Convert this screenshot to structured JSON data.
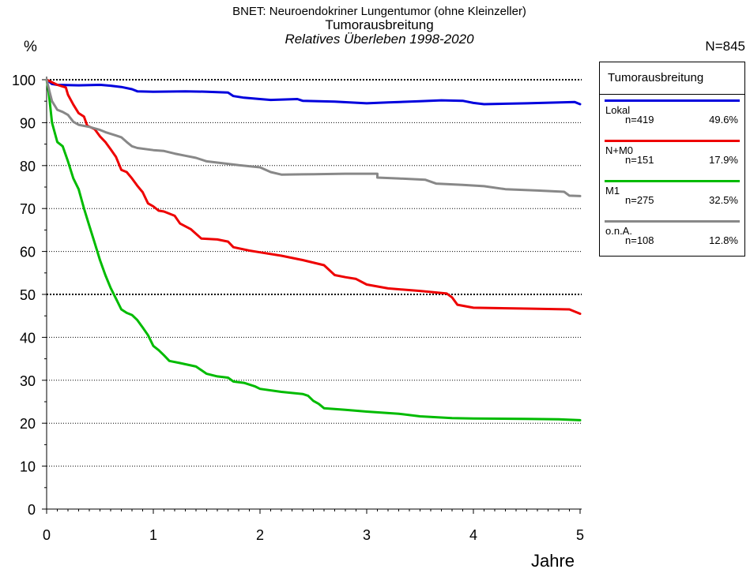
{
  "chart_data": {
    "type": "line",
    "title": "BNET: Neuroendokriner Lungentumor (ohne Kleinzeller)",
    "subtitle": "Tumorausbreitung",
    "period": "Relatives Überleben 1998-2020",
    "ylabel": "%",
    "xlabel": "Jahre",
    "n_total": "N=845",
    "xlim": [
      0,
      5
    ],
    "ylim": [
      0,
      100
    ],
    "xticks": [
      "0",
      "1",
      "2",
      "3",
      "4",
      "5"
    ],
    "yticks": [
      "0",
      "10",
      "20",
      "30",
      "40",
      "50",
      "60",
      "70",
      "80",
      "90",
      "100"
    ],
    "grid": "horizontal dotted",
    "bold_gridlines": [
      50,
      100
    ],
    "legend_title": "Tumorausbreitung",
    "legend_position": "right",
    "series": [
      {
        "name": "Lokal",
        "n": "n=419",
        "pct": "49.6%",
        "color": "#0000dd",
        "points": [
          [
            0,
            100
          ],
          [
            0.05,
            99
          ],
          [
            0.1,
            98.8
          ],
          [
            0.3,
            98.7
          ],
          [
            0.5,
            98.8
          ],
          [
            0.6,
            98.6
          ],
          [
            0.7,
            98.3
          ],
          [
            0.8,
            97.8
          ],
          [
            0.85,
            97.3
          ],
          [
            1.0,
            97.2
          ],
          [
            1.3,
            97.3
          ],
          [
            1.5,
            97.2
          ],
          [
            1.7,
            97.0
          ],
          [
            1.75,
            96.2
          ],
          [
            1.85,
            95.8
          ],
          [
            2.0,
            95.5
          ],
          [
            2.1,
            95.3
          ],
          [
            2.35,
            95.5
          ],
          [
            2.4,
            95.1
          ],
          [
            2.7,
            94.9
          ],
          [
            3.0,
            94.5
          ],
          [
            3.2,
            94.7
          ],
          [
            3.5,
            95.0
          ],
          [
            3.7,
            95.2
          ],
          [
            3.9,
            95.1
          ],
          [
            4.0,
            94.6
          ],
          [
            4.1,
            94.3
          ],
          [
            4.5,
            94.5
          ],
          [
            4.95,
            94.8
          ],
          [
            5.0,
            94.3
          ]
        ]
      },
      {
        "name": "N+M0",
        "n": "n=151",
        "pct": "17.9%",
        "color": "#ee0000",
        "points": [
          [
            0,
            100
          ],
          [
            0.1,
            98.8
          ],
          [
            0.18,
            98.2
          ],
          [
            0.2,
            96.5
          ],
          [
            0.25,
            94.2
          ],
          [
            0.3,
            92.2
          ],
          [
            0.35,
            91.4
          ],
          [
            0.38,
            89.3
          ],
          [
            0.45,
            88.5
          ],
          [
            0.5,
            86.8
          ],
          [
            0.55,
            85.5
          ],
          [
            0.6,
            83.8
          ],
          [
            0.65,
            82.0
          ],
          [
            0.7,
            79.0
          ],
          [
            0.75,
            78.5
          ],
          [
            0.8,
            77.0
          ],
          [
            0.85,
            75.3
          ],
          [
            0.9,
            73.8
          ],
          [
            0.95,
            71.2
          ],
          [
            1.0,
            70.5
          ],
          [
            1.05,
            69.5
          ],
          [
            1.1,
            69.3
          ],
          [
            1.2,
            68.3
          ],
          [
            1.25,
            66.5
          ],
          [
            1.35,
            65.2
          ],
          [
            1.45,
            63.0
          ],
          [
            1.6,
            62.8
          ],
          [
            1.7,
            62.3
          ],
          [
            1.75,
            61.0
          ],
          [
            1.9,
            60.2
          ],
          [
            2.0,
            59.8
          ],
          [
            2.2,
            59.0
          ],
          [
            2.4,
            58.0
          ],
          [
            2.6,
            56.8
          ],
          [
            2.7,
            54.5
          ],
          [
            2.8,
            54.0
          ],
          [
            2.9,
            53.6
          ],
          [
            3.0,
            52.3
          ],
          [
            3.2,
            51.4
          ],
          [
            3.5,
            50.8
          ],
          [
            3.75,
            50.2
          ],
          [
            3.8,
            49.3
          ],
          [
            3.85,
            47.6
          ],
          [
            4.0,
            46.9
          ],
          [
            4.5,
            46.7
          ],
          [
            4.9,
            46.5
          ],
          [
            5.0,
            45.5
          ]
        ]
      },
      {
        "name": "M1",
        "n": "n=275",
        "pct": "32.5%",
        "color": "#00bb00",
        "points": [
          [
            0,
            100
          ],
          [
            0.02,
            97
          ],
          [
            0.05,
            90
          ],
          [
            0.1,
            85.5
          ],
          [
            0.15,
            84.5
          ],
          [
            0.2,
            81
          ],
          [
            0.25,
            77
          ],
          [
            0.3,
            74.5
          ],
          [
            0.35,
            70
          ],
          [
            0.4,
            66
          ],
          [
            0.45,
            62
          ],
          [
            0.5,
            58
          ],
          [
            0.55,
            54.5
          ],
          [
            0.6,
            51.5
          ],
          [
            0.65,
            49
          ],
          [
            0.7,
            46.5
          ],
          [
            0.75,
            45.7
          ],
          [
            0.8,
            45.2
          ],
          [
            0.85,
            44
          ],
          [
            0.9,
            42.3
          ],
          [
            0.95,
            40.5
          ],
          [
            1.0,
            38
          ],
          [
            1.05,
            37
          ],
          [
            1.1,
            35.8
          ],
          [
            1.15,
            34.5
          ],
          [
            1.25,
            34
          ],
          [
            1.4,
            33.2
          ],
          [
            1.5,
            31.5
          ],
          [
            1.6,
            30.9
          ],
          [
            1.7,
            30.6
          ],
          [
            1.75,
            29.7
          ],
          [
            1.85,
            29.4
          ],
          [
            1.95,
            28.6
          ],
          [
            2.0,
            28
          ],
          [
            2.2,
            27.3
          ],
          [
            2.4,
            26.8
          ],
          [
            2.45,
            26.4
          ],
          [
            2.5,
            25.2
          ],
          [
            2.55,
            24.5
          ],
          [
            2.6,
            23.5
          ],
          [
            2.8,
            23.1
          ],
          [
            3.0,
            22.7
          ],
          [
            3.3,
            22.2
          ],
          [
            3.5,
            21.6
          ],
          [
            3.8,
            21.2
          ],
          [
            4.0,
            21.1
          ],
          [
            4.5,
            21.0
          ],
          [
            4.8,
            20.9
          ],
          [
            5.0,
            20.7
          ]
        ]
      },
      {
        "name": "o.n.A.",
        "n": "n=108",
        "pct": "12.8%",
        "color": "#888888",
        "points": [
          [
            0,
            100
          ],
          [
            0.03,
            97
          ],
          [
            0.05,
            95
          ],
          [
            0.1,
            93
          ],
          [
            0.15,
            92.5
          ],
          [
            0.2,
            91.8
          ],
          [
            0.25,
            90.2
          ],
          [
            0.3,
            89.5
          ],
          [
            0.4,
            89
          ],
          [
            0.5,
            88.3
          ],
          [
            0.55,
            87.8
          ],
          [
            0.65,
            87
          ],
          [
            0.7,
            86.6
          ],
          [
            0.75,
            85.5
          ],
          [
            0.8,
            84.5
          ],
          [
            0.85,
            84.1
          ],
          [
            1.0,
            83.6
          ],
          [
            1.1,
            83.4
          ],
          [
            1.2,
            82.8
          ],
          [
            1.3,
            82.3
          ],
          [
            1.4,
            81.8
          ],
          [
            1.5,
            81.0
          ],
          [
            1.7,
            80.4
          ],
          [
            1.8,
            80.1
          ],
          [
            2.0,
            79.6
          ],
          [
            2.1,
            78.5
          ],
          [
            2.2,
            77.9
          ],
          [
            2.5,
            78.0
          ],
          [
            2.8,
            78.1
          ],
          [
            3.1,
            78.1
          ],
          [
            3.1,
            77.2
          ],
          [
            3.3,
            77.0
          ],
          [
            3.55,
            76.7
          ],
          [
            3.65,
            75.8
          ],
          [
            3.9,
            75.5
          ],
          [
            4.1,
            75.2
          ],
          [
            4.3,
            74.5
          ],
          [
            4.6,
            74.2
          ],
          [
            4.85,
            73.9
          ],
          [
            4.9,
            73.0
          ],
          [
            5.0,
            72.9
          ]
        ]
      }
    ]
  }
}
